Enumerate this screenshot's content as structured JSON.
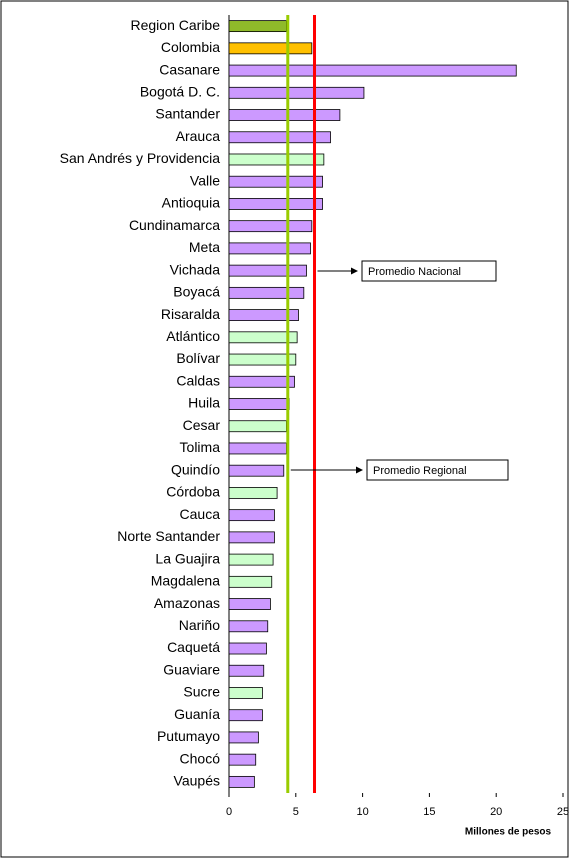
{
  "chart_data": {
    "type": "bar",
    "orientation": "horizontal",
    "x_label": "Millones de pesos",
    "categories": [
      "Region Caribe",
      "Colombia",
      "Casanare",
      "Bogotá D. C.",
      "Santander",
      "Arauca",
      "San Andrés y Providencia",
      "Valle",
      "Antioquia",
      "Cundinamarca",
      "Meta",
      "Vichada",
      "Boyacá",
      "Risaralda",
      "Atlántico",
      "Bolívar",
      "Caldas",
      "Huila",
      "Cesar",
      "Tolima",
      "Quindío",
      "Córdoba",
      "Cauca",
      "Norte Santander",
      "La Guajira",
      "Magdalena",
      "Amazonas",
      "Nariño",
      "Caquetá",
      "Guaviare",
      "Sucre",
      "Guanía",
      "Putumayo",
      "Chocó",
      "Vaupés"
    ],
    "values": [
      4.3,
      6.2,
      21.5,
      10.1,
      8.3,
      7.6,
      7.1,
      7.0,
      7.0,
      6.2,
      6.1,
      5.8,
      5.6,
      5.2,
      5.1,
      5.0,
      4.9,
      4.5,
      4.3,
      4.3,
      4.1,
      3.6,
      3.4,
      3.4,
      3.3,
      3.2,
      3.1,
      2.9,
      2.8,
      2.6,
      2.5,
      2.5,
      2.2,
      2.0,
      1.9
    ],
    "colors": [
      "#8fba2a",
      "#ffc000",
      "#cc99ff",
      "#cc99ff",
      "#cc99ff",
      "#cc99ff",
      "#ccffcc",
      "#cc99ff",
      "#cc99ff",
      "#cc99ff",
      "#cc99ff",
      "#cc99ff",
      "#cc99ff",
      "#cc99ff",
      "#ccffcc",
      "#ccffcc",
      "#cc99ff",
      "#cc99ff",
      "#ccffcc",
      "#cc99ff",
      "#cc99ff",
      "#ccffcc",
      "#cc99ff",
      "#cc99ff",
      "#ccffcc",
      "#ccffcc",
      "#cc99ff",
      "#cc99ff",
      "#cc99ff",
      "#cc99ff",
      "#ccffcc",
      "#cc99ff",
      "#cc99ff",
      "#cc99ff",
      "#cc99ff"
    ],
    "xlim": [
      0,
      25
    ],
    "xticks": [
      0,
      5,
      10,
      15,
      20,
      25
    ],
    "reference_lines": [
      {
        "text": "Promedio Nacional",
        "value": 6.4,
        "color": "#ff0000"
      },
      {
        "text": "Promedio Regional",
        "value": 4.4,
        "color": "#99cc00"
      }
    ]
  }
}
